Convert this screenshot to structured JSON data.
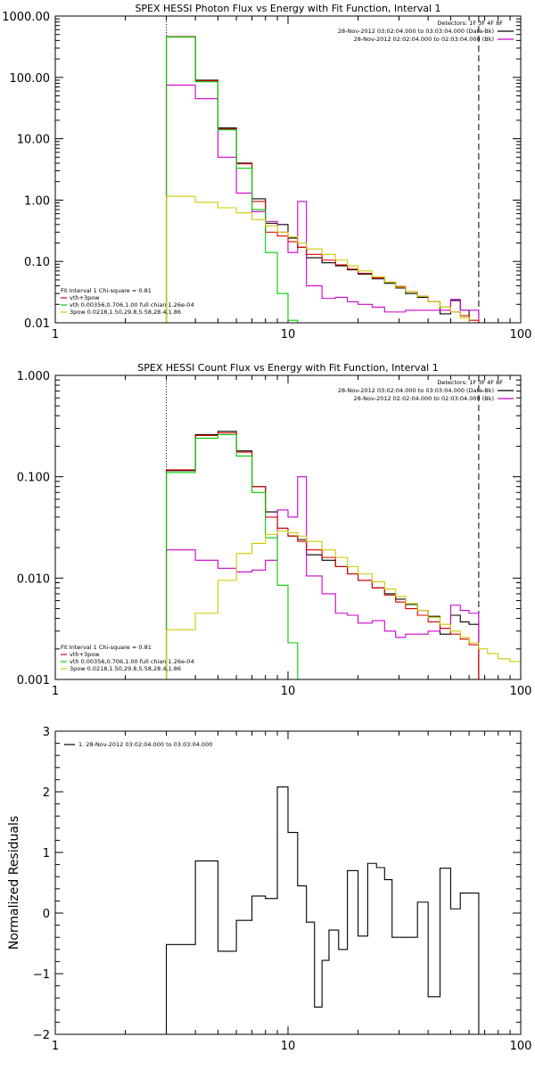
{
  "chart_data": [
    {
      "type": "line",
      "title": "SPEX HESSI Photon Flux vs Energy with Fit Function, Interval 1",
      "xlabel": "",
      "ylabel": "",
      "xscale": "log",
      "yscale": "log",
      "xlim": [
        1,
        100
      ],
      "ylim": [
        0.01,
        1000
      ],
      "x_ticks": [
        1,
        10,
        100
      ],
      "x_tick_labels": [
        "1",
        "10",
        "100"
      ],
      "y_ticks": [
        0.01,
        0.1,
        1,
        10,
        100,
        1000
      ],
      "y_tick_labels": [
        "0.01",
        "0.10",
        "1.00",
        "10.00",
        "100.00",
        "1000.00"
      ],
      "vlines": [
        {
          "x": 3.0,
          "style": "dotted"
        },
        {
          "x": 66,
          "style": "dashed"
        }
      ],
      "legend_right": {
        "placement": "top-right",
        "title": "Detectors: 1F 3F 4F 8F",
        "entries": [
          {
            "label": "28-Nov-2012 03:02:04.000 to 03:03:04.000 (Data-Bk)",
            "color": "#000000"
          },
          {
            "label": "28-Nov-2012 02:02:04.000 to 02:03:04.000 (Bk)",
            "color": "#cc00cc"
          }
        ]
      },
      "legend_left": {
        "placement": "bottom-left",
        "title": "Fit Interval 1   Chi-square = 0.81",
        "entries": [
          {
            "label": "vth+3pow",
            "color": "#dd0000"
          },
          {
            "label": "vth 0.00356,0.706,1.00   full chian 1.26e-04",
            "color": "#00cc00"
          },
          {
            "label": "3pow 0.0218,1.50,29.8,5.58,28.4,1.86",
            "color": "#cccc00"
          }
        ]
      },
      "edges": [
        3.0,
        4.0,
        5.0,
        6.0,
        7.0,
        8.0,
        9.0,
        10.0,
        11.0,
        12.0,
        14.0,
        16.0,
        18.0,
        20.0,
        23.0,
        26.0,
        29.0,
        32.0,
        36.0,
        40.0,
        45.0,
        50.0,
        55.0,
        60.0,
        66.0,
        72.0
      ],
      "series": [
        {
          "name": "",
          "color": "#000000",
          "values": [
            460,
            90,
            15,
            4.0,
            1.05,
            0.42,
            0.4,
            0.24,
            0.17,
            0.115,
            0.095,
            0.085,
            0.073,
            0.062,
            0.052,
            0.044,
            0.037,
            0.03,
            0.026,
            0.022,
            0.014,
            0.023,
            0.016,
            0.01
          ]
        },
        {
          "name": "",
          "color": "#cc00cc",
          "values": [
            75,
            45,
            5.0,
            1.3,
            0.65,
            0.45,
            0.3,
            0.14,
            0.95,
            0.04,
            0.025,
            0.026,
            0.022,
            0.02,
            0.018,
            0.015,
            0.015,
            0.016,
            0.016,
            0.016,
            0.016,
            0.024,
            0.016,
            0.016
          ]
        },
        {
          "name": "vth+3pow",
          "color": "#dd0000",
          "values": [
            460,
            88,
            14.5,
            3.9,
            0.95,
            0.3,
            0.26,
            0.21,
            0.17,
            0.13,
            0.105,
            0.088,
            0.075,
            0.064,
            0.054,
            0.046,
            0.039,
            0.032,
            0.027,
            0.022,
            0.018,
            0.015,
            0.013,
            0.011
          ]
        },
        {
          "name": "vth",
          "color": "#00cc00",
          "values": [
            455,
            85,
            14,
            3.3,
            0.7,
            0.14,
            0.03,
            0.011
          ]
        },
        {
          "name": "3pow",
          "color": "#cccc00",
          "values": [
            1.15,
            0.92,
            0.75,
            0.62,
            0.48,
            0.38,
            0.3,
            0.25,
            0.2,
            0.16,
            0.13,
            0.105,
            0.085,
            0.07,
            0.056,
            0.046,
            0.038,
            0.032,
            0.027,
            0.022,
            0.018,
            0.015,
            0.012,
            0.01,
            0.009
          ]
        }
      ]
    },
    {
      "type": "line",
      "title": "SPEX HESSI Count Flux vs Energy with Fit Function, Interval 1",
      "xlabel": "",
      "ylabel": "",
      "xscale": "log",
      "yscale": "log",
      "xlim": [
        1,
        100
      ],
      "ylim": [
        0.001,
        1
      ],
      "x_ticks": [
        1,
        10,
        100
      ],
      "x_tick_labels": [
        "1",
        "10",
        "100"
      ],
      "y_ticks": [
        0.001,
        0.01,
        0.1,
        1
      ],
      "y_tick_labels": [
        "0.001",
        "0.010",
        "0.100",
        "1.000"
      ],
      "vlines": [
        {
          "x": 3.0,
          "style": "dotted"
        },
        {
          "x": 66,
          "style": "dashed"
        }
      ],
      "legend_right": {
        "placement": "top-right",
        "title": "Detectors: 1F 3F 4F 8F",
        "entries": [
          {
            "label": "28-Nov-2012 03:02:04.000 to 03:03:04.000 (Data-Bk)",
            "color": "#000000"
          },
          {
            "label": "28-Nov-2012 02:02:04.000 to 02:03:04.000 (Bk)",
            "color": "#cc00cc"
          }
        ]
      },
      "legend_left": {
        "placement": "bottom-left",
        "title": "Fit Interval 1   Chi-square = 0.81",
        "entries": [
          {
            "label": "vth+3pow",
            "color": "#dd0000"
          },
          {
            "label": "vth 0.00356,0.706,1.00   full chian 1.26e-04",
            "color": "#00cc00"
          },
          {
            "label": "3pow 0.0218,1.50,29.8,5.58,28.4,1.86",
            "color": "#cccc00"
          }
        ]
      },
      "edges": [
        3.0,
        4.0,
        5.0,
        6.0,
        7.0,
        8.0,
        9.0,
        10.0,
        11.0,
        12.0,
        14.0,
        16.0,
        18.0,
        20.0,
        23.0,
        26.0,
        29.0,
        32.0,
        36.0,
        40.0,
        45.0,
        50.0,
        55.0,
        60.0,
        66.0,
        72.0,
        80.0,
        90.0,
        100.0
      ],
      "series": [
        {
          "name": "",
          "color": "#000000",
          "values": [
            0.115,
            0.26,
            0.28,
            0.18,
            0.08,
            0.045,
            0.031,
            0.026,
            0.024,
            0.017,
            0.015,
            0.013,
            0.011,
            0.0095,
            0.008,
            0.007,
            0.0062,
            0.0055,
            0.0048,
            0.0042,
            0.0028,
            0.0043,
            0.0037,
            0.0035
          ]
        },
        {
          "name": "",
          "color": "#cc00cc",
          "values": [
            0.019,
            0.015,
            0.0125,
            0.0115,
            0.012,
            0.015,
            0.047,
            0.04,
            0.1,
            0.0105,
            0.007,
            0.0045,
            0.0043,
            0.0036,
            0.0038,
            0.003,
            0.0026,
            0.0028,
            0.0028,
            0.003,
            0.0032,
            0.0054,
            0.0048,
            0.0045
          ]
        },
        {
          "name": "vth+3pow",
          "color": "#dd0000",
          "values": [
            0.117,
            0.255,
            0.27,
            0.175,
            0.08,
            0.04,
            0.031,
            0.026,
            0.023,
            0.019,
            0.016,
            0.013,
            0.011,
            0.0095,
            0.008,
            0.0068,
            0.0058,
            0.005,
            0.0043,
            0.0037,
            0.0032,
            0.0028,
            0.0025,
            0.0022
          ]
        },
        {
          "name": "vth",
          "color": "#00cc00",
          "values": [
            0.11,
            0.24,
            0.26,
            0.16,
            0.07,
            0.025,
            0.0085,
            0.0023
          ]
        },
        {
          "name": "3pow",
          "color": "#cccc00",
          "values": [
            0.0031,
            0.0045,
            0.0095,
            0.0175,
            0.022,
            0.027,
            0.029,
            0.028,
            0.026,
            0.023,
            0.019,
            0.016,
            0.013,
            0.011,
            0.0092,
            0.0078,
            0.0066,
            0.0056,
            0.0048,
            0.0041,
            0.0035,
            0.003,
            0.0026,
            0.0023,
            0.002,
            0.0018,
            0.0016,
            0.0015
          ]
        }
      ]
    },
    {
      "type": "line",
      "title": "",
      "xlabel": "",
      "ylabel": "Normalized Residuals",
      "xscale": "log",
      "yscale": "linear",
      "xlim": [
        1,
        100
      ],
      "ylim": [
        -2,
        3
      ],
      "x_ticks": [
        1,
        10,
        100
      ],
      "x_tick_labels": [
        "1",
        "10",
        "100"
      ],
      "y_ticks": [
        -2,
        -1,
        0,
        1,
        2,
        3
      ],
      "y_tick_labels": [
        "−2",
        "−1",
        "0",
        "1",
        "2",
        "3"
      ],
      "legend": {
        "placement": "top-left",
        "entries": [
          {
            "label": "1. 28-Nov-2012 03:02:04.000 to 03:03:04.000",
            "color": "#000000"
          }
        ]
      },
      "edges": [
        3.0,
        4.0,
        5.0,
        6.0,
        7.0,
        8.0,
        9.0,
        10.0,
        11.0,
        12.0,
        13.0,
        14.0,
        15.0,
        16.5,
        18.0,
        20.0,
        22.0,
        24.0,
        26.0,
        28.0,
        32.0,
        36.0,
        40.0,
        45.0,
        50.0,
        55.0,
        60.0,
        66.0
      ],
      "series": [
        {
          "name": "1. 28-Nov-2012 03:02:04.000 to 03:03:04.000",
          "color": "#000000",
          "values": [
            -0.52,
            0.86,
            -0.63,
            -0.12,
            0.28,
            0.24,
            2.08,
            1.33,
            0.45,
            -0.15,
            -1.55,
            -0.78,
            -0.28,
            -0.6,
            0.7,
            -0.38,
            0.82,
            0.75,
            0.55,
            -0.4,
            -0.4,
            0.18,
            -1.38,
            0.74,
            0.07,
            0.33,
            0.33
          ]
        }
      ]
    }
  ]
}
